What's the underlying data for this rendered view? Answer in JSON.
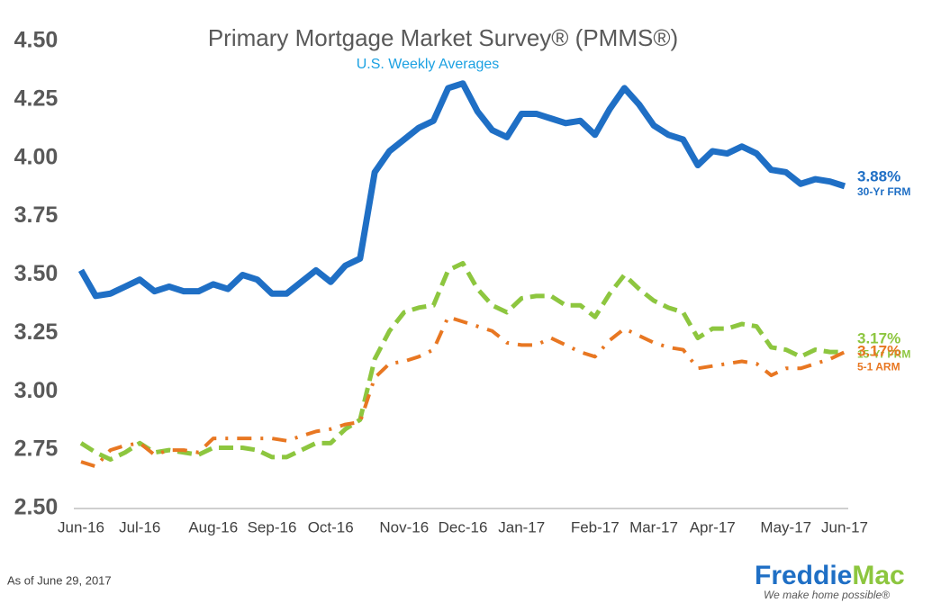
{
  "chart_data": {
    "type": "line",
    "title": "Primary Mortgage Market Survey® (PMMS®)",
    "subtitle": "U.S. Weekly Averages",
    "categories": [
      "Jun-16",
      null,
      null,
      null,
      "Jul-16",
      null,
      null,
      null,
      null,
      "Aug-16",
      null,
      null,
      null,
      "Sep-16",
      null,
      null,
      null,
      "Oct-16",
      null,
      null,
      null,
      null,
      "Nov-16",
      null,
      null,
      null,
      "Dec-16",
      null,
      null,
      null,
      "Jan-17",
      null,
      null,
      null,
      null,
      "Feb-17",
      null,
      null,
      null,
      "Mar-17",
      null,
      null,
      null,
      "Apr-17",
      null,
      null,
      null,
      null,
      "May-17",
      null,
      null,
      null,
      "Jun-17"
    ],
    "series": [
      {
        "name": "30-Yr FRM",
        "color": "#1f6fc5",
        "style": "solid",
        "values": [
          3.52,
          3.41,
          3.42,
          3.45,
          3.48,
          3.43,
          3.45,
          3.43,
          3.43,
          3.46,
          3.44,
          3.5,
          3.48,
          3.42,
          3.42,
          3.47,
          3.52,
          3.47,
          3.54,
          3.57,
          3.94,
          4.03,
          4.08,
          4.13,
          4.16,
          4.3,
          4.32,
          4.2,
          4.12,
          4.09,
          4.19,
          4.19,
          4.17,
          4.15,
          4.16,
          4.1,
          4.21,
          4.3,
          4.23,
          4.14,
          4.1,
          4.08,
          3.97,
          4.03,
          4.02,
          4.05,
          4.02,
          3.95,
          3.94,
          3.89,
          3.91,
          3.9,
          3.88
        ],
        "value_labels": [
          null,
          null,
          null,
          null,
          null,
          null,
          null,
          null,
          null,
          null,
          null,
          null,
          null,
          null,
          null,
          null,
          null,
          null,
          null,
          null,
          null,
          null,
          null,
          null,
          null,
          null,
          null,
          null,
          null,
          null,
          null,
          null,
          null,
          null,
          null,
          null,
          null,
          null,
          null,
          null,
          null,
          null,
          null,
          null,
          null,
          null,
          null,
          null,
          null,
          null,
          null,
          null,
          "3.88%"
        ]
      },
      {
        "name": "15-Yr FRM",
        "color": "#8dc63f",
        "style": "dashed",
        "values": [
          2.78,
          2.74,
          2.71,
          2.74,
          2.78,
          2.74,
          2.75,
          2.74,
          2.73,
          2.76,
          2.76,
          2.76,
          2.75,
          2.72,
          2.72,
          2.75,
          2.78,
          2.78,
          2.84,
          2.88,
          3.14,
          3.26,
          3.34,
          3.36,
          3.37,
          3.52,
          3.55,
          3.44,
          3.37,
          3.34,
          3.4,
          3.41,
          3.41,
          3.37,
          3.37,
          3.32,
          3.42,
          3.5,
          3.44,
          3.39,
          3.36,
          3.34,
          3.23,
          3.27,
          3.27,
          3.29,
          3.28,
          3.19,
          3.18,
          3.15,
          3.18,
          3.17,
          3.17
        ],
        "value_labels": [
          null,
          null,
          null,
          null,
          null,
          null,
          null,
          null,
          null,
          null,
          null,
          null,
          null,
          null,
          null,
          null,
          null,
          null,
          null,
          null,
          null,
          null,
          null,
          null,
          null,
          null,
          null,
          null,
          null,
          null,
          null,
          null,
          null,
          null,
          null,
          null,
          null,
          null,
          null,
          null,
          null,
          null,
          null,
          null,
          null,
          null,
          null,
          null,
          null,
          null,
          null,
          null,
          "3.17%"
        ]
      },
      {
        "name": "5-1 ARM",
        "color": "#e87722",
        "style": "dashdot",
        "values": [
          2.7,
          2.68,
          2.75,
          2.77,
          2.78,
          2.73,
          2.75,
          2.75,
          2.74,
          2.8,
          2.8,
          2.8,
          2.8,
          2.8,
          2.79,
          2.81,
          2.83,
          2.84,
          2.86,
          2.87,
          3.06,
          3.12,
          3.13,
          3.15,
          3.18,
          3.32,
          3.3,
          3.28,
          3.26,
          3.21,
          3.2,
          3.2,
          3.23,
          3.2,
          3.17,
          3.15,
          3.22,
          3.27,
          3.24,
          3.21,
          3.19,
          3.18,
          3.1,
          3.11,
          3.12,
          3.13,
          3.12,
          3.07,
          3.1,
          3.1,
          3.12,
          3.14,
          3.17
        ],
        "value_labels": [
          null,
          null,
          null,
          null,
          null,
          null,
          null,
          null,
          null,
          null,
          null,
          null,
          null,
          null,
          null,
          null,
          null,
          null,
          null,
          null,
          null,
          null,
          null,
          null,
          null,
          null,
          null,
          null,
          null,
          null,
          null,
          null,
          null,
          null,
          null,
          null,
          null,
          null,
          null,
          null,
          null,
          null,
          null,
          null,
          null,
          null,
          null,
          null,
          null,
          null,
          null,
          null,
          "3.17%"
        ]
      }
    ],
    "ylim": [
      2.5,
      4.5
    ],
    "yticks": [
      {
        "value": 2.5,
        "label": "2.50"
      },
      {
        "value": 2.75,
        "label": "2.75"
      },
      {
        "value": 3.0,
        "label": "3.00"
      },
      {
        "value": 3.25,
        "label": "3.25"
      },
      {
        "value": 3.5,
        "label": "3.50"
      },
      {
        "value": 3.75,
        "label": "3.75"
      },
      {
        "value": 4.0,
        "label": "4.00"
      },
      {
        "value": 4.25,
        "label": "4.25"
      },
      {
        "value": 4.5,
        "label": "4.50"
      }
    ],
    "grid": false
  },
  "footnote": "As of June 29, 2017",
  "logo": {
    "first": "Freddie",
    "second": "Mac",
    "tagline": "We make home possible®"
  }
}
